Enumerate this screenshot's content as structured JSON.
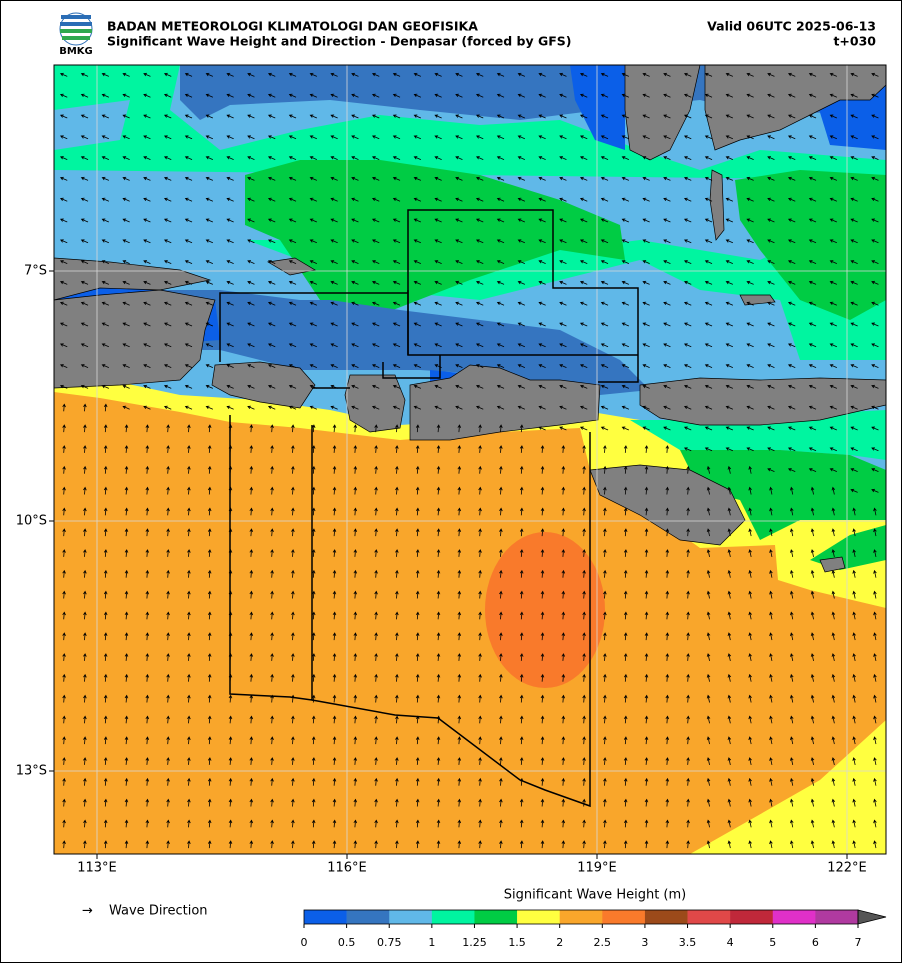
{
  "header": {
    "agency": "BADAN METEOROLOGI KLIMATOLOGI DAN GEOFISIKA",
    "title": "Significant Wave Height and Direction - Denpasar (forced by GFS)",
    "valid": "Valid 06UTC 2025-06-13",
    "lead": "t+030",
    "logo_text": "BMKG"
  },
  "map": {
    "lon_labels": [
      "113°E",
      "116°E",
      "119°E",
      "122°E"
    ],
    "lat_labels": [
      "7°S",
      "10°S",
      "13°S"
    ]
  },
  "legend": {
    "arrow_label": "Wave Direction"
  },
  "colorbar": {
    "title": "Significant Wave Height (m)",
    "levels": [
      0,
      0.5,
      0.75,
      1,
      1.25,
      1.5,
      2,
      2.5,
      3,
      3.5,
      4,
      5,
      6,
      7
    ],
    "colors": [
      "#0b5fe8",
      "#3575c0",
      "#60b8e8",
      "#00f5a0",
      "#00cc44",
      "#ffff40",
      "#f9a62b",
      "#f97a2b",
      "#9c4a1a",
      "#e04848",
      "#c0283a",
      "#e030c8",
      "#b03aa0"
    ]
  }
}
